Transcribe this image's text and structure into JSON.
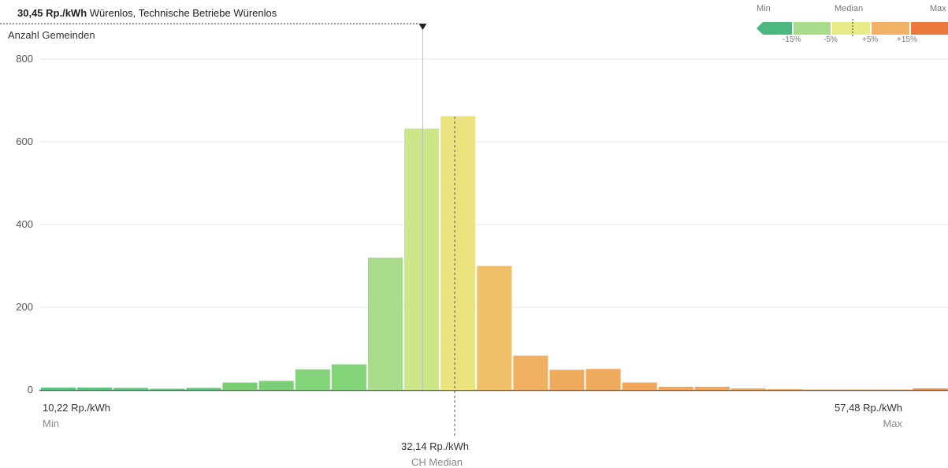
{
  "header": {
    "value": "30,45 Rp./kWh",
    "location": "Würenlos, Technische Betriebe Würenlos"
  },
  "legend": {
    "min_label": "Min",
    "median_label": "Median",
    "max_label": "Max",
    "ticks": [
      "-15%",
      "-5%",
      "+5%",
      "+15%"
    ],
    "colors": [
      "#4cb87f",
      "#a8db8a",
      "#e8ec86",
      "#f2b266",
      "#ec7a3c"
    ]
  },
  "labels": {
    "min_value": "10,22 Rp./kWh",
    "min_caption": "Min",
    "max_value": "57,48 Rp./kWh",
    "max_caption": "Max",
    "median_value": "32,14 Rp./kWh",
    "median_caption": "CH Median"
  },
  "chart_data": {
    "type": "bar",
    "ylabel": "Anzahl Gemeinden",
    "ylim": [
      0,
      800
    ],
    "yticks": [
      0,
      200,
      400,
      600,
      800
    ],
    "grid": true,
    "values": [
      6,
      6,
      5,
      3,
      5,
      18,
      22,
      50,
      62,
      320,
      632,
      662,
      300,
      83,
      49,
      51,
      18,
      8,
      8,
      4,
      2,
      1,
      1,
      1,
      4,
      0
    ],
    "colors": [
      "#5dc07d",
      "#5dc07d",
      "#5dc07d",
      "#5dc07d",
      "#5dc07d",
      "#7acf75",
      "#7acf75",
      "#84d479",
      "#84d479",
      "#a8db8a",
      "#cde68a",
      "#ebe47e",
      "#f0c068",
      "#f0b062",
      "#f0aa5e",
      "#f0aa5e",
      "#f0a75c",
      "#f0a65b",
      "#f0a65b",
      "#f0a65b",
      "#f0a65b",
      "#f0a65b",
      "#f0a65b",
      "#f0a65b",
      "#ec8f48",
      "#ec8f48"
    ],
    "x_min": 10.22,
    "x_max": 57.48,
    "median": 32.14,
    "selected": 30.45
  }
}
